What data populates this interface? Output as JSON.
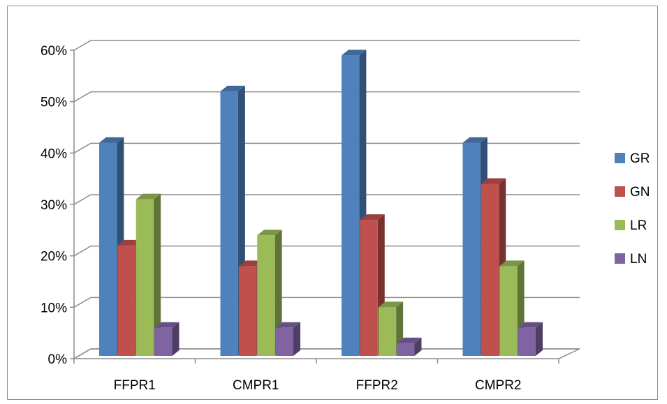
{
  "chart_data": {
    "type": "bar",
    "title": "",
    "xlabel": "",
    "ylabel": "",
    "categories": [
      "FFPR1",
      "CMPR1",
      "FFPR2",
      "CMPR2"
    ],
    "series": [
      {
        "name": "GR",
        "color": "#4F81BD",
        "values": [
          42,
          52,
          59,
          42
        ]
      },
      {
        "name": "GN",
        "color": "#C0504D",
        "values": [
          22,
          18,
          27,
          34
        ]
      },
      {
        "name": "LR",
        "color": "#9BBB59",
        "values": [
          31,
          24,
          10,
          18
        ]
      },
      {
        "name": "LN",
        "color": "#8064A2",
        "values": [
          6,
          6,
          3,
          6
        ]
      }
    ],
    "ylim": [
      0,
      60
    ],
    "yticks": [
      "0%",
      "10%",
      "20%",
      "30%",
      "40%",
      "50%",
      "60%"
    ],
    "grid": true,
    "legend_position": "right",
    "style": "3d-clustered-column"
  }
}
